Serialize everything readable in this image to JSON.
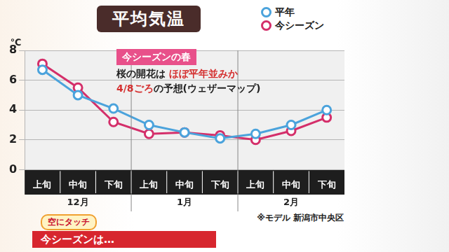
{
  "chart_data": {
    "type": "line",
    "title": "平均気温",
    "categories": [
      "上旬",
      "中旬",
      "下旬",
      "上旬",
      "中旬",
      "下旬",
      "上旬",
      "中旬",
      "下旬"
    ],
    "category_groups": [
      "12月",
      "1月",
      "2月"
    ],
    "ylabel": "℃",
    "series": [
      {
        "name": "平年",
        "color": "#4ba3dc",
        "marker": "circle",
        "values": [
          6.7,
          5.0,
          4.1,
          3.0,
          2.5,
          2.1,
          2.4,
          3.0,
          4.0
        ]
      },
      {
        "name": "今シーズン",
        "color": "#d42f6a",
        "marker": "circle",
        "values": [
          7.1,
          5.5,
          3.2,
          2.4,
          2.5,
          2.3,
          2.0,
          2.6,
          3.5
        ]
      }
    ],
    "ylim": [
      0,
      8
    ],
    "yticks": [
      0,
      2,
      4,
      6,
      8
    ],
    "grid": true,
    "legend": "top right",
    "annotation": {
      "title": "今シーズンの春",
      "lines": [
        [
          {
            "text": "桜の開花は "
          },
          {
            "text": "ほぼ平年並みか",
            "color": "#d42f2f"
          }
        ],
        [
          {
            "text": "4/8ごろ",
            "color": "#d42f2f"
          },
          {
            "text": "の予想"
          },
          {
            "text": "(ウェザーマップ)"
          }
        ]
      ]
    },
    "note": "※モデル 新潟市中央区"
  },
  "banner": {
    "logo": "空にタッチ",
    "text": "今シーズンは…"
  }
}
